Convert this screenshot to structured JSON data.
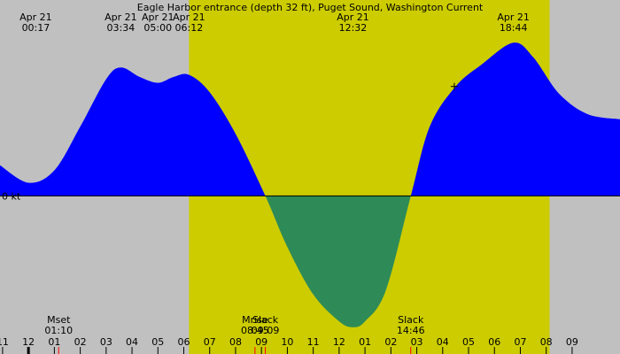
{
  "chart_data": {
    "type": "area",
    "title": "Eagle Harbor entrance (depth 32 ft), Puget Sound, Washington Current",
    "y_unit_label": "0 kt",
    "x_unit": "hour of day (Apr 21)",
    "xlim": [
      -1.1,
      22.85
    ],
    "ylim": [
      -1.9,
      2.2
    ],
    "daylight": {
      "start": 6.2,
      "end": 20.13
    },
    "colors": {
      "background": "#c0c0c0",
      "daylight": "#cccc00",
      "flood": "#0000ff",
      "ebb": "#2e8b57"
    },
    "top_events": [
      {
        "date": "Apr 21",
        "time": "00:17",
        "hour": 0.283
      },
      {
        "date": "Apr 21",
        "time": "03:34",
        "hour": 3.567
      },
      {
        "date": "Apr 21",
        "time": "05:00",
        "hour": 5.0
      },
      {
        "date": "Apr 21",
        "time": "06:12",
        "hour": 6.2
      },
      {
        "date": "Apr 21",
        "time": "12:32",
        "hour": 12.533
      },
      {
        "date": "Apr 21",
        "time": "18:44",
        "hour": 18.733
      }
    ],
    "bottom_events": [
      {
        "label": "Mset",
        "time": "01:10",
        "hour": 1.167
      },
      {
        "label": "Mrise",
        "time": "08:45",
        "hour": 8.75
      },
      {
        "label": "Slack",
        "time": "09:09",
        "hour": 9.15
      },
      {
        "label": "Slack",
        "time": "14:46",
        "hour": 14.767
      }
    ],
    "hour_ticks": [
      {
        "label": "11",
        "hour": -1
      },
      {
        "label": "12",
        "hour": 0
      },
      {
        "label": "01",
        "hour": 1
      },
      {
        "label": "02",
        "hour": 2
      },
      {
        "label": "03",
        "hour": 3
      },
      {
        "label": "04",
        "hour": 4
      },
      {
        "label": "05",
        "hour": 5
      },
      {
        "label": "06",
        "hour": 6
      },
      {
        "label": "07",
        "hour": 7
      },
      {
        "label": "08",
        "hour": 8
      },
      {
        "label": "09",
        "hour": 9
      },
      {
        "label": "10",
        "hour": 10
      },
      {
        "label": "11",
        "hour": 11
      },
      {
        "label": "12",
        "hour": 12
      },
      {
        "label": "01",
        "hour": 13
      },
      {
        "label": "02",
        "hour": 14
      },
      {
        "label": "03",
        "hour": 15
      },
      {
        "label": "04",
        "hour": 16
      },
      {
        "label": "05",
        "hour": 17
      },
      {
        "label": "06",
        "hour": 18
      },
      {
        "label": "07",
        "hour": 19
      },
      {
        "label": "08",
        "hour": 20
      },
      {
        "label": "09",
        "hour": 21
      }
    ],
    "current_series": [
      [
        -1.1,
        0.42
      ],
      [
        0.0,
        0.18
      ],
      [
        1.0,
        0.35
      ],
      [
        2.0,
        0.95
      ],
      [
        3.0,
        1.6
      ],
      [
        3.57,
        1.76
      ],
      [
        4.3,
        1.63
      ],
      [
        5.0,
        1.55
      ],
      [
        5.6,
        1.63
      ],
      [
        6.2,
        1.66
      ],
      [
        7.0,
        1.42
      ],
      [
        8.0,
        0.85
      ],
      [
        9.15,
        0.0
      ],
      [
        10.0,
        -0.7
      ],
      [
        11.0,
        -1.35
      ],
      [
        12.0,
        -1.72
      ],
      [
        12.53,
        -1.8
      ],
      [
        13.0,
        -1.72
      ],
      [
        13.8,
        -1.3
      ],
      [
        14.77,
        0.0
      ],
      [
        15.5,
        0.95
      ],
      [
        16.5,
        1.5
      ],
      [
        17.5,
        1.8
      ],
      [
        18.73,
        2.1
      ],
      [
        19.5,
        1.9
      ],
      [
        20.5,
        1.4
      ],
      [
        21.6,
        1.12
      ],
      [
        22.85,
        1.05
      ]
    ],
    "crosshair": {
      "hour": 16.45,
      "value": 1.5
    },
    "moon_markers": [
      1.167,
      8.75
    ],
    "slack_markers": [
      9.15,
      14.767
    ],
    "now_marker": 0.0
  }
}
